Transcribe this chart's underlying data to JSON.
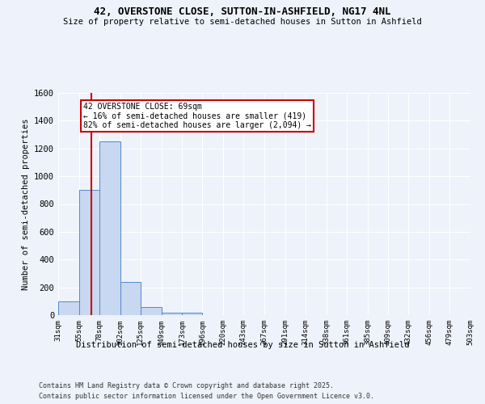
{
  "title": "42, OVERSTONE CLOSE, SUTTON-IN-ASHFIELD, NG17 4NL",
  "subtitle": "Size of property relative to semi-detached houses in Sutton in Ashfield",
  "xlabel": "Distribution of semi-detached houses by size in Sutton in Ashfield",
  "ylabel": "Number of semi-detached properties",
  "footnote1": "Contains HM Land Registry data © Crown copyright and database right 2025.",
  "footnote2": "Contains public sector information licensed under the Open Government Licence v3.0.",
  "annotation_title": "42 OVERSTONE CLOSE: 69sqm",
  "annotation_line1": "← 16% of semi-detached houses are smaller (419)",
  "annotation_line2": "82% of semi-detached houses are larger (2,094) →",
  "property_size": 69,
  "bin_edges": [
    31,
    55,
    78,
    102,
    125,
    149,
    173,
    196,
    220,
    243,
    267,
    291,
    314,
    338,
    361,
    385,
    409,
    432,
    456,
    479,
    503
  ],
  "bar_heights": [
    100,
    900,
    1250,
    240,
    60,
    20,
    15,
    0,
    0,
    0,
    0,
    0,
    0,
    0,
    0,
    0,
    0,
    0,
    0,
    0
  ],
  "bar_color": "#c8d8f0",
  "bar_edge_color": "#5588cc",
  "vline_color": "#cc0000",
  "vline_x": 69,
  "ylim": [
    0,
    1600
  ],
  "background_color": "#eef2fa",
  "grid_color": "#ffffff",
  "annotation_box_color": "#ffffff",
  "annotation_box_edge": "#cc0000"
}
